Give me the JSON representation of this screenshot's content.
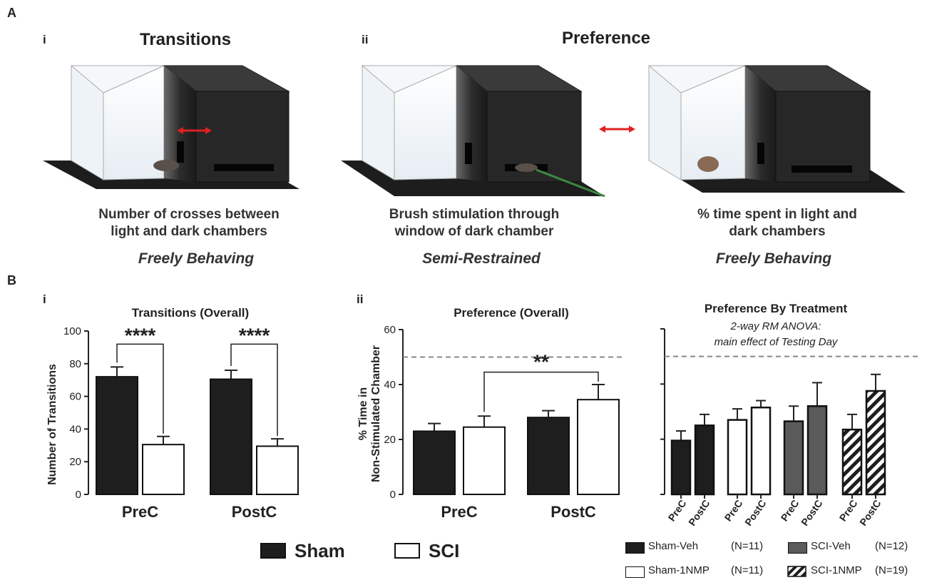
{
  "panel_a": {
    "letter": "A",
    "sub_i": "i",
    "sub_ii": "ii",
    "transitions_title": "Transitions",
    "preference_title": "Preference",
    "captions": [
      {
        "line1": "Number of crosses between",
        "line2": "light and dark chambers",
        "mode": "Freely Behaving"
      },
      {
        "line1": "Brush stimulation through",
        "line2": "window of dark chamber",
        "mode": "Semi-Restrained"
      },
      {
        "line1": "% time spent in light and",
        "line2": "dark chambers",
        "mode": "Freely Behaving"
      }
    ]
  },
  "panel_b": {
    "letter": "B",
    "sub_i": "i",
    "sub_ii": "ii"
  },
  "colors": {
    "sham": "#1e1e1e",
    "sci": "#ffffff",
    "sci_veh": "#5a5a5a",
    "arrow": "#e02020",
    "dashed": "#888888"
  },
  "chart_data": [
    {
      "type": "bar",
      "title": "Transitions (Overall)",
      "ylabel": "Number of Transitions",
      "xlabel": "",
      "ylim": [
        0,
        100
      ],
      "yticks": [
        "0",
        "20",
        "40",
        "60",
        "80",
        "100"
      ],
      "categories": [
        "PreC",
        "PostC"
      ],
      "series": [
        {
          "name": "Sham",
          "values": [
            72,
            70.5
          ],
          "errors": [
            6,
            5.5
          ]
        },
        {
          "name": "SCI",
          "values": [
            30.5,
            29.5
          ],
          "errors": [
            5,
            4.5
          ]
        }
      ],
      "annotations": [
        "****",
        "****"
      ]
    },
    {
      "type": "bar",
      "title": "Preference (Overall)",
      "ylabel": "% Time in",
      "ylabel2": "Non-Stimulated Chamber",
      "xlabel": "",
      "ylim": [
        0,
        60
      ],
      "yticks": [
        "0",
        "20",
        "40",
        "60"
      ],
      "reference_line": 50,
      "categories": [
        "PreC",
        "PostC"
      ],
      "series": [
        {
          "name": "Sham",
          "values": [
            23,
            28
          ],
          "errors": [
            2.8,
            2.5
          ]
        },
        {
          "name": "SCI",
          "values": [
            24.5,
            34.5
          ],
          "errors": [
            4,
            5.5
          ]
        }
      ],
      "annotations": [
        "**"
      ]
    },
    {
      "type": "bar",
      "title": "Preference By Treatment",
      "subtitle1": "2-way RM ANOVA:",
      "subtitle2": "main effect of Testing Day",
      "ylim": [
        0,
        60
      ],
      "reference_line": 50,
      "groups": [
        {
          "name": "Sham-Veh",
          "n": "(N=11)",
          "pattern": "sham",
          "values": [
            19.5,
            25
          ],
          "errors": [
            3.5,
            4
          ]
        },
        {
          "name": "Sham-1NMP",
          "n": "(N=11)",
          "pattern": "sci",
          "values": [
            27,
            31.5
          ],
          "errors": [
            4,
            2.5
          ]
        },
        {
          "name": "SCI-Veh",
          "n": "(N=12)",
          "pattern": "sci_veh",
          "values": [
            26.5,
            32
          ],
          "errors": [
            5.5,
            8.5
          ]
        },
        {
          "name": "SCI-1NMP",
          "n": "(N=19)",
          "pattern": "hatch",
          "values": [
            23.5,
            37.5
          ],
          "errors": [
            5.5,
            6
          ]
        }
      ],
      "tick_labels": [
        "PreC",
        "PostC"
      ]
    }
  ],
  "legend": {
    "sham": "Sham",
    "sci": "SCI"
  }
}
